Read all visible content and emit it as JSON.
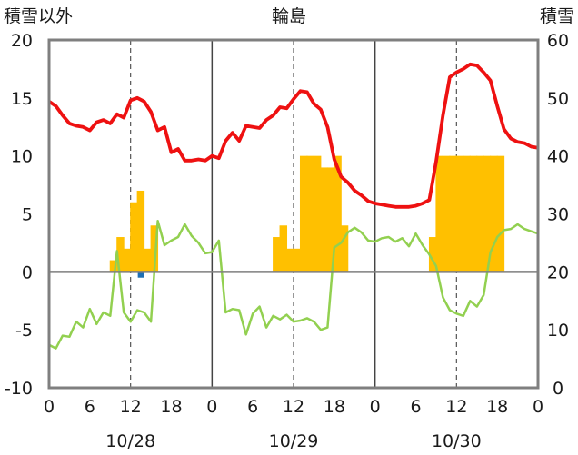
{
  "chart_data": {
    "type": "bar",
    "title": "輪島",
    "left_axis_label": "積雪以外",
    "right_axis_label": "積雪",
    "left_ylim": [
      -10,
      20
    ],
    "left_ticks": [
      "20",
      "15",
      "10",
      "5",
      "0",
      "-5",
      "-10"
    ],
    "right_ylim": [
      0,
      60
    ],
    "right_ticks": [
      "60",
      "50",
      "40",
      "30",
      "20",
      "10",
      "0"
    ],
    "x_tick_labels": [
      "0",
      "6",
      "12",
      "18",
      "0",
      "6",
      "12",
      "18",
      "0",
      "6",
      "12",
      "18",
      "0"
    ],
    "dates": [
      "10/28",
      "10/29",
      "10/30"
    ],
    "x_range_hours": [
      0,
      72
    ],
    "grid": "dashed vertical at 12h, solid day separators",
    "colors": {
      "temperature": "#ee1111",
      "dew_point": "#92d050",
      "snow_depth": "#ffc000",
      "precipitation": "#1f6fb4",
      "axis": "#7f7f7f"
    },
    "series": [
      {
        "name": "気温",
        "axis": "left",
        "kind": "line",
        "points": [
          [
            0,
            14.7
          ],
          [
            1,
            14.3
          ],
          [
            2,
            13.5
          ],
          [
            3,
            12.8
          ],
          [
            4,
            12.6
          ],
          [
            5,
            12.5
          ],
          [
            6,
            12.2
          ],
          [
            7,
            12.9
          ],
          [
            8,
            13.1
          ],
          [
            9,
            12.8
          ],
          [
            10,
            13.6
          ],
          [
            11,
            13.3
          ],
          [
            12,
            14.8
          ],
          [
            13,
            15.0
          ],
          [
            14,
            14.7
          ],
          [
            15,
            13.8
          ],
          [
            16,
            12.2
          ],
          [
            17,
            12.5
          ],
          [
            18,
            10.3
          ],
          [
            19,
            10.6
          ],
          [
            20,
            9.6
          ],
          [
            21,
            9.6
          ],
          [
            22,
            9.7
          ],
          [
            23,
            9.6
          ],
          [
            24,
            10.0
          ],
          [
            25,
            9.8
          ],
          [
            26,
            11.3
          ],
          [
            27,
            12.0
          ],
          [
            28,
            11.3
          ],
          [
            29,
            12.6
          ],
          [
            30,
            12.5
          ],
          [
            31,
            12.4
          ],
          [
            32,
            13.1
          ],
          [
            33,
            13.5
          ],
          [
            34,
            14.2
          ],
          [
            35,
            14.1
          ],
          [
            36,
            14.9
          ],
          [
            37,
            15.6
          ],
          [
            38,
            15.5
          ],
          [
            39,
            14.5
          ],
          [
            40,
            14.0
          ],
          [
            41,
            12.5
          ],
          [
            42,
            9.7
          ],
          [
            43,
            8.2
          ],
          [
            44,
            7.7
          ],
          [
            45,
            7.0
          ],
          [
            46,
            6.6
          ],
          [
            47,
            6.1
          ],
          [
            48,
            5.9
          ],
          [
            49,
            5.8
          ],
          [
            50,
            5.7
          ],
          [
            51,
            5.6
          ],
          [
            52,
            5.6
          ],
          [
            53,
            5.6
          ],
          [
            54,
            5.7
          ],
          [
            55,
            5.9
          ],
          [
            56,
            6.2
          ],
          [
            57,
            9.5
          ],
          [
            58,
            13.5
          ],
          [
            59,
            16.8
          ],
          [
            60,
            17.2
          ],
          [
            61,
            17.5
          ],
          [
            62,
            17.9
          ],
          [
            63,
            17.8
          ],
          [
            64,
            17.2
          ],
          [
            65,
            16.5
          ],
          [
            66,
            14.3
          ],
          [
            67,
            12.3
          ],
          [
            68,
            11.5
          ],
          [
            69,
            11.2
          ],
          [
            70,
            11.1
          ],
          [
            71,
            10.8
          ],
          [
            72,
            10.7
          ]
        ]
      },
      {
        "name": "露点温度",
        "axis": "left",
        "kind": "line",
        "points": [
          [
            0,
            -6.3
          ],
          [
            1,
            -6.6
          ],
          [
            2,
            -5.5
          ],
          [
            3,
            -5.6
          ],
          [
            4,
            -4.3
          ],
          [
            5,
            -4.8
          ],
          [
            6,
            -3.2
          ],
          [
            7,
            -4.5
          ],
          [
            8,
            -3.5
          ],
          [
            9,
            -3.8
          ],
          [
            10,
            1.8
          ],
          [
            11,
            -3.5
          ],
          [
            12,
            -4.3
          ],
          [
            13,
            -3.3
          ],
          [
            14,
            -3.5
          ],
          [
            15,
            -4.3
          ],
          [
            16,
            4.4
          ],
          [
            17,
            2.3
          ],
          [
            18,
            2.7
          ],
          [
            19,
            3.0
          ],
          [
            20,
            4.1
          ],
          [
            21,
            3.1
          ],
          [
            22,
            2.5
          ],
          [
            23,
            1.6
          ],
          [
            24,
            1.7
          ],
          [
            25,
            2.7
          ],
          [
            26,
            -3.5
          ],
          [
            27,
            -3.2
          ],
          [
            28,
            -3.3
          ],
          [
            29,
            -5.4
          ],
          [
            30,
            -3.6
          ],
          [
            31,
            -3.0
          ],
          [
            32,
            -4.8
          ],
          [
            33,
            -3.8
          ],
          [
            34,
            -4.1
          ],
          [
            35,
            -3.7
          ],
          [
            36,
            -4.3
          ],
          [
            37,
            -4.2
          ],
          [
            38,
            -4.0
          ],
          [
            39,
            -4.3
          ],
          [
            40,
            -5.0
          ],
          [
            41,
            -4.8
          ],
          [
            42,
            2.1
          ],
          [
            43,
            2.5
          ],
          [
            44,
            3.4
          ],
          [
            45,
            3.8
          ],
          [
            46,
            3.4
          ],
          [
            47,
            2.7
          ],
          [
            48,
            2.6
          ],
          [
            49,
            2.9
          ],
          [
            50,
            3.0
          ],
          [
            51,
            2.6
          ],
          [
            52,
            2.9
          ],
          [
            53,
            2.2
          ],
          [
            54,
            3.3
          ],
          [
            55,
            2.3
          ],
          [
            56,
            1.5
          ],
          [
            57,
            0.5
          ],
          [
            58,
            -2.2
          ],
          [
            59,
            -3.3
          ],
          [
            60,
            -3.6
          ],
          [
            61,
            -3.8
          ],
          [
            62,
            -2.5
          ],
          [
            63,
            -3.0
          ],
          [
            64,
            -2.0
          ],
          [
            65,
            1.7
          ],
          [
            66,
            3.0
          ],
          [
            67,
            3.6
          ],
          [
            68,
            3.7
          ],
          [
            69,
            4.1
          ],
          [
            70,
            3.7
          ],
          [
            71,
            3.5
          ],
          [
            72,
            3.3
          ]
        ]
      },
      {
        "name": "積雪",
        "axis": "right",
        "kind": "bar",
        "hour_values": [
          [
            9,
            22
          ],
          [
            10,
            26
          ],
          [
            11,
            24
          ],
          [
            12,
            32
          ],
          [
            13,
            34
          ],
          [
            14,
            24
          ],
          [
            15,
            28
          ],
          [
            33,
            26
          ],
          [
            34,
            28
          ],
          [
            35,
            24
          ],
          [
            36,
            24
          ],
          [
            37,
            40
          ],
          [
            38,
            40
          ],
          [
            39,
            40
          ],
          [
            40,
            38
          ],
          [
            41,
            38
          ],
          [
            42,
            40
          ],
          [
            43,
            28
          ],
          [
            56,
            26
          ],
          [
            57,
            40
          ],
          [
            58,
            40
          ],
          [
            59,
            40
          ],
          [
            60,
            40
          ],
          [
            61,
            40
          ],
          [
            62,
            40
          ],
          [
            63,
            40
          ],
          [
            64,
            40
          ],
          [
            65,
            40
          ],
          [
            66,
            40
          ]
        ]
      },
      {
        "name": "降水量",
        "axis": "left",
        "kind": "bar",
        "hour_values": [
          [
            13,
            -0.5
          ]
        ]
      }
    ]
  }
}
